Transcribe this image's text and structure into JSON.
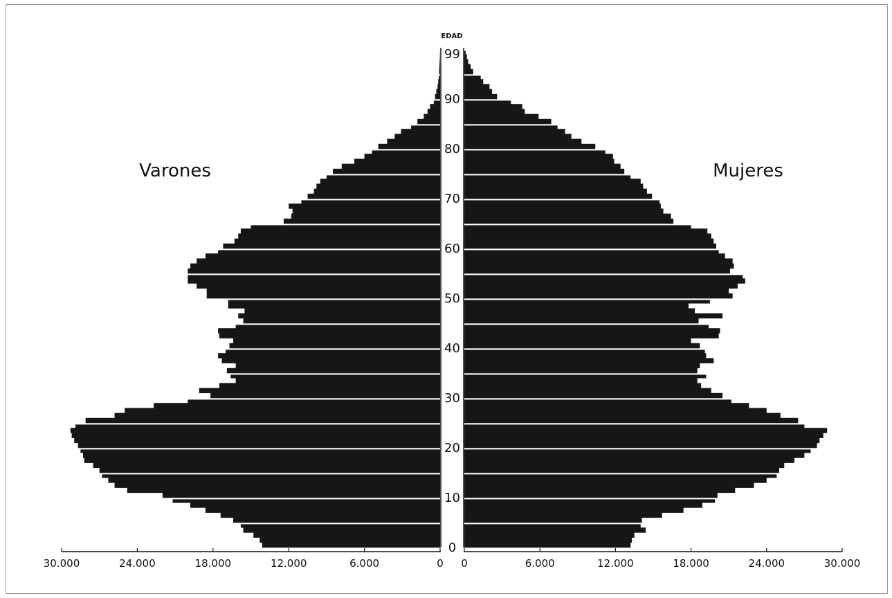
{
  "chart_data": {
    "type": "bar",
    "orientation": "horizontal",
    "subtype": "population-pyramid",
    "y_axis_title": "EDAD",
    "age_ticks": [
      "0",
      "10",
      "20",
      "30",
      "40",
      "50",
      "60",
      "70",
      "80",
      "90",
      "99"
    ],
    "x_ticks_left": [
      "30.000",
      "24.000",
      "18.000",
      "12.000",
      "6.000",
      "0"
    ],
    "x_ticks_right": [
      "0",
      "6.000",
      "12.000",
      "18.000",
      "24.000",
      "30.000"
    ],
    "xlim": [
      0,
      30000
    ],
    "ylim": [
      0,
      99
    ],
    "ages": [
      0,
      1,
      2,
      3,
      4,
      5,
      6,
      7,
      8,
      9,
      10,
      11,
      12,
      13,
      14,
      15,
      16,
      17,
      18,
      19,
      20,
      21,
      22,
      23,
      24,
      25,
      26,
      27,
      28,
      29,
      30,
      31,
      32,
      33,
      34,
      35,
      36,
      37,
      38,
      39,
      40,
      41,
      42,
      43,
      44,
      45,
      46,
      47,
      48,
      49,
      50,
      51,
      52,
      53,
      54,
      55,
      56,
      57,
      58,
      59,
      60,
      61,
      62,
      63,
      64,
      65,
      66,
      67,
      68,
      69,
      70,
      71,
      72,
      73,
      74,
      75,
      76,
      77,
      78,
      79,
      80,
      81,
      82,
      83,
      84,
      85,
      86,
      87,
      88,
      89,
      90,
      91,
      92,
      93,
      94,
      95,
      96,
      97,
      98,
      99
    ],
    "series": [
      {
        "name": "Varones",
        "values": [
          14100,
          14300,
          14800,
          15600,
          15800,
          16400,
          17400,
          18600,
          19800,
          21200,
          22000,
          24800,
          25800,
          26300,
          26800,
          27000,
          27500,
          28200,
          28300,
          28500,
          28700,
          29000,
          29200,
          29300,
          28900,
          28100,
          25800,
          25000,
          22700,
          20000,
          18200,
          19100,
          17500,
          16200,
          16600,
          16900,
          16200,
          17300,
          17600,
          17000,
          16700,
          16400,
          17500,
          17600,
          16200,
          15600,
          16000,
          15500,
          16800,
          16800,
          18500,
          18500,
          19300,
          20000,
          20000,
          20000,
          19800,
          19300,
          18600,
          17600,
          17200,
          16300,
          16000,
          15800,
          15000,
          12400,
          11800,
          11700,
          12000,
          11000,
          10500,
          10000,
          9800,
          9500,
          9000,
          8500,
          7800,
          6800,
          6000,
          5400,
          4900,
          4200,
          3600,
          3100,
          2300,
          1800,
          1300,
          1000,
          800,
          500,
          400,
          300,
          200,
          150,
          100,
          80,
          60,
          40,
          20,
          10
        ]
      },
      {
        "name": "Mujeres",
        "values": [
          13200,
          13300,
          13500,
          14400,
          14000,
          14100,
          15700,
          17400,
          18900,
          19900,
          20100,
          21500,
          23000,
          24000,
          24800,
          25000,
          25400,
          26200,
          27000,
          27500,
          28000,
          28200,
          28500,
          28800,
          27000,
          26500,
          25100,
          24000,
          22600,
          21200,
          20500,
          19600,
          18800,
          18500,
          19200,
          18500,
          18700,
          19800,
          19200,
          19100,
          18700,
          18000,
          20200,
          20300,
          19400,
          18600,
          20500,
          18300,
          17800,
          19500,
          21300,
          21000,
          21700,
          22300,
          22100,
          21100,
          21400,
          21300,
          20700,
          20200,
          20000,
          19800,
          19600,
          19300,
          18000,
          16600,
          16400,
          15800,
          15600,
          15500,
          14900,
          14500,
          14200,
          14000,
          13200,
          12700,
          12400,
          11900,
          11800,
          11200,
          10400,
          9300,
          8500,
          8000,
          7400,
          6900,
          5900,
          4800,
          4600,
          3700,
          2600,
          2200,
          2000,
          1500,
          1300,
          700,
          500,
          300,
          200,
          100
        ]
      }
    ],
    "labels": {
      "left": "Varones",
      "right": "Mujeres"
    },
    "legend": "none",
    "grid": false
  }
}
